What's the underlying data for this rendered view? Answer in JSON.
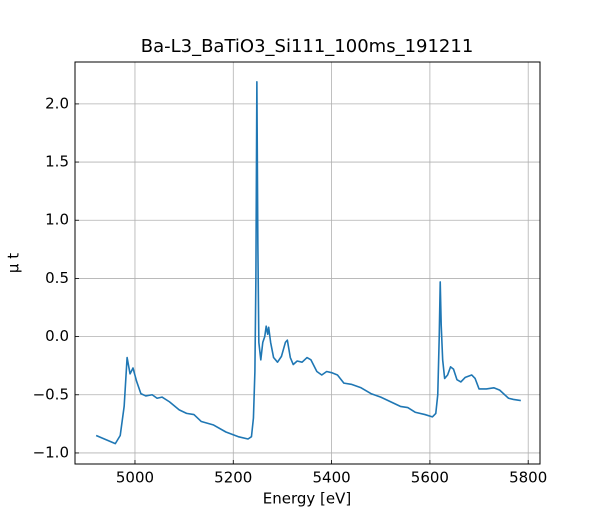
{
  "chart_data": {
    "type": "line",
    "title": "Ba-L3_BaTiO3_Si111_100ms_191211",
    "x_label": "Energy [eV]",
    "y_label": "μ t",
    "x": [
      4921,
      4960,
      4970,
      4978,
      4984,
      4990,
      4996,
      5003,
      5012,
      5022,
      5035,
      5045,
      5055,
      5070,
      5090,
      5105,
      5120,
      5135,
      5160,
      5185,
      5210,
      5230,
      5237,
      5241,
      5244,
      5246,
      5248,
      5250,
      5252,
      5256,
      5260,
      5264,
      5267,
      5270,
      5272,
      5276,
      5282,
      5290,
      5298,
      5306,
      5310,
      5316,
      5322,
      5330,
      5340,
      5350,
      5358,
      5370,
      5380,
      5390,
      5400,
      5412,
      5425,
      5440,
      5460,
      5480,
      5500,
      5520,
      5540,
      5555,
      5570,
      5590,
      5605,
      5612,
      5616,
      5619,
      5621,
      5623,
      5626,
      5630,
      5636,
      5642,
      5648,
      5655,
      5663,
      5672,
      5685,
      5692,
      5700,
      5715,
      5730,
      5742,
      5760,
      5770,
      5785
    ],
    "series": [
      {
        "name": "μ t",
        "color": "#1f77b4",
        "values": [
          -0.85,
          -0.92,
          -0.85,
          -0.6,
          -0.18,
          -0.32,
          -0.27,
          -0.38,
          -0.49,
          -0.51,
          -0.5,
          -0.53,
          -0.52,
          -0.56,
          -0.63,
          -0.66,
          -0.67,
          -0.73,
          -0.76,
          -0.82,
          -0.86,
          -0.88,
          -0.86,
          -0.7,
          -0.3,
          0.5,
          2.19,
          0.8,
          -0.05,
          -0.2,
          -0.05,
          0.0,
          0.09,
          0.02,
          0.08,
          -0.05,
          -0.18,
          -0.22,
          -0.17,
          -0.05,
          -0.03,
          -0.18,
          -0.24,
          -0.21,
          -0.22,
          -0.18,
          -0.2,
          -0.3,
          -0.33,
          -0.3,
          -0.31,
          -0.33,
          -0.4,
          -0.41,
          -0.44,
          -0.49,
          -0.52,
          -0.56,
          -0.6,
          -0.61,
          -0.65,
          -0.67,
          -0.69,
          -0.66,
          -0.5,
          0.0,
          0.47,
          0.1,
          -0.2,
          -0.36,
          -0.33,
          -0.26,
          -0.28,
          -0.37,
          -0.39,
          -0.35,
          -0.33,
          -0.36,
          -0.45,
          -0.45,
          -0.44,
          -0.46,
          -0.53,
          -0.54,
          -0.55
        ]
      }
    ],
    "xlim": [
      4878,
      5824
    ],
    "ylim": [
      -1.095,
      2.36
    ],
    "xticks": [
      5000,
      5200,
      5400,
      5600,
      5800
    ],
    "yticks": [
      {
        "value": -1,
        "label": "−1.0"
      },
      {
        "value": -0.5,
        "label": "−0.5"
      },
      {
        "value": 0,
        "label": "0.0"
      },
      {
        "value": 0.5,
        "label": "0.5"
      },
      {
        "value": 1,
        "label": "1.0"
      },
      {
        "value": 1.5,
        "label": "1.5"
      },
      {
        "value": 2,
        "label": "2.0"
      }
    ],
    "grid": true
  }
}
